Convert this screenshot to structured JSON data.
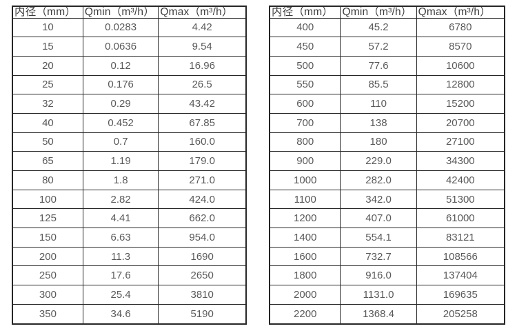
{
  "colors": {
    "border": "#262626",
    "header_text": "#3d3d3d",
    "cell_text": "#595959",
    "background": "#ffffff"
  },
  "chart_data": [
    {
      "type": "table",
      "title": "",
      "columns": [
        "内径（mm）",
        "Qmin（m³/h）",
        "Qmax（m³/h）"
      ],
      "rows": [
        [
          "10",
          "0.0283",
          "4.42"
        ],
        [
          "15",
          "0.0636",
          "9.54"
        ],
        [
          "20",
          "0.12",
          "16.96"
        ],
        [
          "25",
          "0.176",
          "26.5"
        ],
        [
          "32",
          "0.29",
          "43.42"
        ],
        [
          "40",
          "0.452",
          "67.85"
        ],
        [
          "50",
          "0.7",
          "160.0"
        ],
        [
          "65",
          "1.19",
          "179.0"
        ],
        [
          "80",
          "1.8",
          "271.0"
        ],
        [
          "100",
          "2.82",
          "424.0"
        ],
        [
          "125",
          "4.41",
          "662.0"
        ],
        [
          "150",
          "6.63",
          "954.0"
        ],
        [
          "200",
          "11.3",
          "1690"
        ],
        [
          "250",
          "17.6",
          "2650"
        ],
        [
          "300",
          "25.4",
          "3810"
        ],
        [
          "350",
          "34.6",
          "5190"
        ]
      ]
    },
    {
      "type": "table",
      "title": "",
      "columns": [
        "内径（mm）",
        "Qmin（m³/h）",
        "Qmax（m³/h）"
      ],
      "rows": [
        [
          "400",
          "45.2",
          "6780"
        ],
        [
          "450",
          "57.2",
          "8570"
        ],
        [
          "500",
          "77.6",
          "10600"
        ],
        [
          "550",
          "85.5",
          "12800"
        ],
        [
          "600",
          "110",
          "15200"
        ],
        [
          "700",
          "138",
          "20700"
        ],
        [
          "800",
          "180",
          "27100"
        ],
        [
          "900",
          "229.0",
          "34300"
        ],
        [
          "1000",
          "282.0",
          "42400"
        ],
        [
          "1100",
          "342.0",
          "51300"
        ],
        [
          "1200",
          "407.0",
          "61000"
        ],
        [
          "1400",
          "554.1",
          "83121"
        ],
        [
          "1600",
          "732.7",
          "108566"
        ],
        [
          "1800",
          "916.0",
          "137404"
        ],
        [
          "2000",
          "1131.0",
          "169635"
        ],
        [
          "2200",
          "1368.4",
          "205258"
        ]
      ]
    }
  ]
}
